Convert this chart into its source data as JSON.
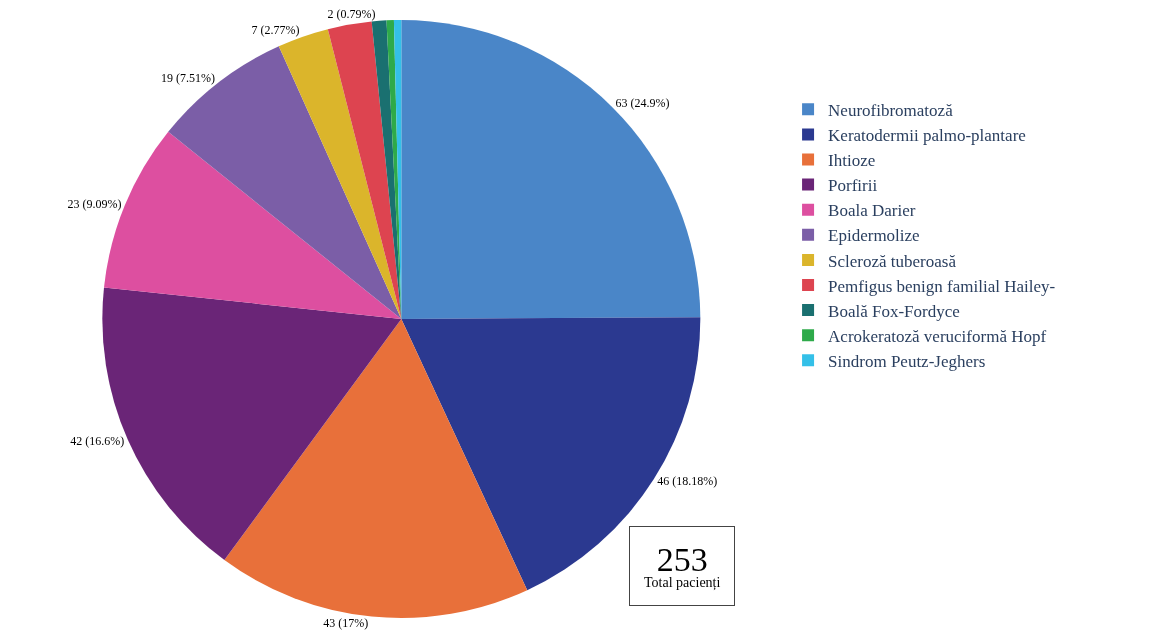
{
  "chart_data": {
    "type": "pie",
    "categories": [
      "Neurofibromatoză",
      "Keratodermii palmo-plantare",
      "Ihtioze",
      "Porfirii",
      "Boala Darier",
      "Epidermolize",
      "Scleroză tuberoasă",
      "Pemfigus benign familial Hailey-",
      "Boală Fox-Fordyce",
      "Acrokeratoză veruciformă Hopf",
      "Sindrom Peutz-Jeghers"
    ],
    "values": [
      63,
      46,
      43,
      42,
      23,
      19,
      7,
      6,
      2,
      1,
      1
    ],
    "value_labels": [
      "63 (24.9%)",
      "46 (18.18%)",
      "43 (17%)",
      "42 (16.6%)",
      "23 (9.09%)",
      "19 (7.51%)",
      "7 (2.77%)",
      null,
      "2 (0.79%)",
      null,
      null
    ],
    "colors": [
      "#4a86c8",
      "#2b3990",
      "#e8703a",
      "#6a2577",
      "#dd4fa0",
      "#7b5ea7",
      "#dbb52b",
      "#dd4450",
      "#1a7070",
      "#2eaa4a",
      "#34c0e8"
    ],
    "legend": "right",
    "annotations": [
      "253",
      "Total pacienți"
    ]
  }
}
